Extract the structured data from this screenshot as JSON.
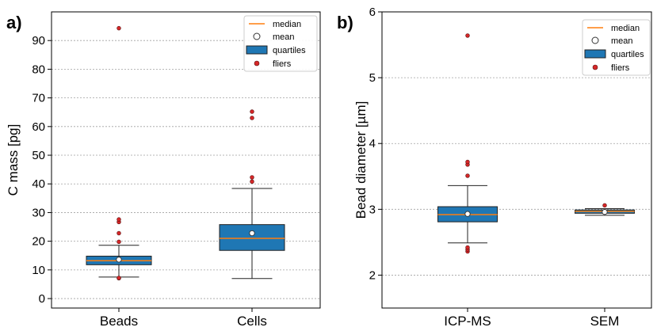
{
  "chart_data": [
    {
      "type": "box",
      "panel_label": "a)",
      "ylabel": "C mass [pg]",
      "xlabel": "",
      "ylim": [
        -3.3,
        100
      ],
      "yticks": [
        0,
        10,
        20,
        30,
        40,
        50,
        60,
        70,
        80,
        90
      ],
      "grid": true,
      "legend_position": "top-right",
      "legend": [
        "median",
        "mean",
        "quartiles",
        "fliers"
      ],
      "categories": [
        "Beads",
        "Cells"
      ],
      "boxes": [
        {
          "category": "Beads",
          "whisker_low": 7.5,
          "q1": 11.8,
          "median": 13.2,
          "q3": 14.8,
          "whisker_high": 18.6,
          "mean": 13.6,
          "fliers": [
            7.1,
            7.2,
            19.8,
            22.8,
            26.7,
            27.6,
            94.3
          ]
        },
        {
          "category": "Cells",
          "whisker_low": 7.0,
          "q1": 16.8,
          "median": 21.0,
          "q3": 25.8,
          "whisker_high": 38.4,
          "mean": 22.8,
          "fliers": [
            40.8,
            42.3,
            63.0,
            65.2
          ]
        }
      ]
    },
    {
      "type": "box",
      "panel_label": "b)",
      "ylabel": "Bead diameter [µm]",
      "xlabel": "",
      "ylim": [
        1.5,
        6
      ],
      "yticks": [
        2,
        3,
        4,
        5,
        6
      ],
      "grid": true,
      "legend_position": "top-right",
      "legend": [
        "median",
        "mean",
        "quartiles",
        "fliers"
      ],
      "categories": [
        "ICP-MS",
        "SEM"
      ],
      "boxes": [
        {
          "category": "ICP-MS",
          "whisker_low": 2.49,
          "q1": 2.81,
          "median": 2.92,
          "q3": 3.04,
          "whisker_high": 3.36,
          "mean": 2.93,
          "fliers": [
            2.36,
            2.39,
            2.42,
            3.51,
            3.68,
            3.72,
            5.64
          ]
        },
        {
          "category": "SEM",
          "whisker_low": 2.91,
          "q1": 2.94,
          "median": 2.97,
          "q3": 2.99,
          "whisker_high": 3.01,
          "mean": 2.96,
          "fliers": [
            3.06
          ]
        }
      ]
    }
  ],
  "colors": {
    "box_fill": "#1f77b4",
    "median_line": "#ff7f0e",
    "flier_fill": "#d62728",
    "mean_fill": "#ffffff",
    "grid": "#a0a0a0"
  }
}
